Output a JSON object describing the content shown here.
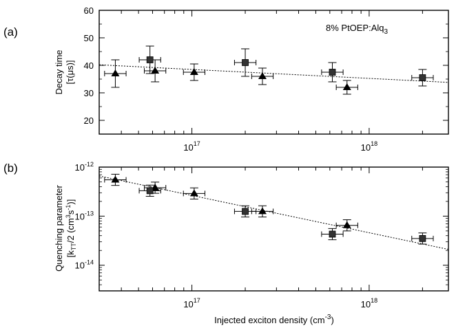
{
  "chart_data": [
    {
      "type": "scatter",
      "panel_label": "(a)",
      "annotation": "8% PtOEP:Alq",
      "annotation_sub": "3",
      "ylabel_line1": "Decay time",
      "ylabel_line2": "[τ(μs)]",
      "xscale": "log",
      "xlim": [
        3e+16,
        2.8e+18
      ],
      "ylim": [
        15,
        60
      ],
      "yticks": [
        20,
        30,
        40,
        50,
        60
      ],
      "ytick_labels": [
        "20",
        "30",
        "40",
        "50",
        "60"
      ],
      "xticks": [
        1e+17,
        1e+18
      ],
      "xtick_labels": [
        {
          "base": "10",
          "exp": "17"
        },
        {
          "base": "10",
          "exp": "18"
        }
      ],
      "grid": false,
      "series": [
        {
          "marker": "triangle",
          "x": [
            3.7e+16,
            6.2e+16,
            1.03e+17,
            2.5e+17,
            7.5e+17
          ],
          "y": [
            37,
            38,
            37.5,
            36,
            32
          ],
          "yerr": [
            5,
            4,
            3,
            3,
            2.5
          ]
        },
        {
          "marker": "square",
          "x": [
            5.8e+16,
            2e+17,
            6.2e+17,
            2e+18
          ],
          "y": [
            42,
            41,
            37.5,
            35.5
          ],
          "yerr": [
            5,
            5,
            3.5,
            3
          ]
        }
      ],
      "fit": {
        "x": [
          3e+16,
          2.8e+18
        ],
        "y": [
          40.2,
          33.8
        ]
      }
    },
    {
      "type": "scatter",
      "panel_label": "(b)",
      "ylabel_line1": "Quenching parameter",
      "ylabel_line2": "[k",
      "ylabel_line2_sub": "TT",
      "ylabel_line2_end": "/2 (cm",
      "ylabel_line2_sup1": "3",
      "ylabel_line2_mid": "s",
      "ylabel_line2_sup2": "-1",
      "ylabel_line2_close": ")]",
      "xlabel": "Injected exciton density (cm",
      "xlabel_sup": "-3",
      "xlabel_close": ")",
      "xscale": "log",
      "yscale": "log",
      "xlim": [
        3e+16,
        2.8e+18
      ],
      "ylim": [
        3e-15,
        1e-12
      ],
      "yticks": [
        1e-14,
        1e-13,
        1e-12
      ],
      "ytick_labels": [
        {
          "base": "10",
          "exp": "-14"
        },
        {
          "base": "10",
          "exp": "-13"
        },
        {
          "base": "10",
          "exp": "-12"
        }
      ],
      "xticks": [
        1e+17,
        1e+18
      ],
      "xtick_labels": [
        {
          "base": "10",
          "exp": "17"
        },
        {
          "base": "10",
          "exp": "18"
        }
      ],
      "grid": false,
      "series": [
        {
          "marker": "triangle",
          "x": [
            3.7e+16,
            6.2e+16,
            1.03e+17,
            2.5e+17,
            7.5e+17
          ],
          "y": [
            5.5e-13,
            3.8e-13,
            2.9e-13,
            1.25e-13,
            6.5e-14
          ]
        },
        {
          "marker": "square",
          "x": [
            5.8e+16,
            2e+17,
            6.2e+17,
            2e+18
          ],
          "y": [
            3.3e-13,
            1.25e-13,
            4.3e-14,
            3.5e-14
          ]
        }
      ],
      "fit": {
        "x": [
          3e+16,
          2.8e+18
        ],
        "y": [
          6.6e-13,
          2.1e-14
        ]
      }
    }
  ]
}
